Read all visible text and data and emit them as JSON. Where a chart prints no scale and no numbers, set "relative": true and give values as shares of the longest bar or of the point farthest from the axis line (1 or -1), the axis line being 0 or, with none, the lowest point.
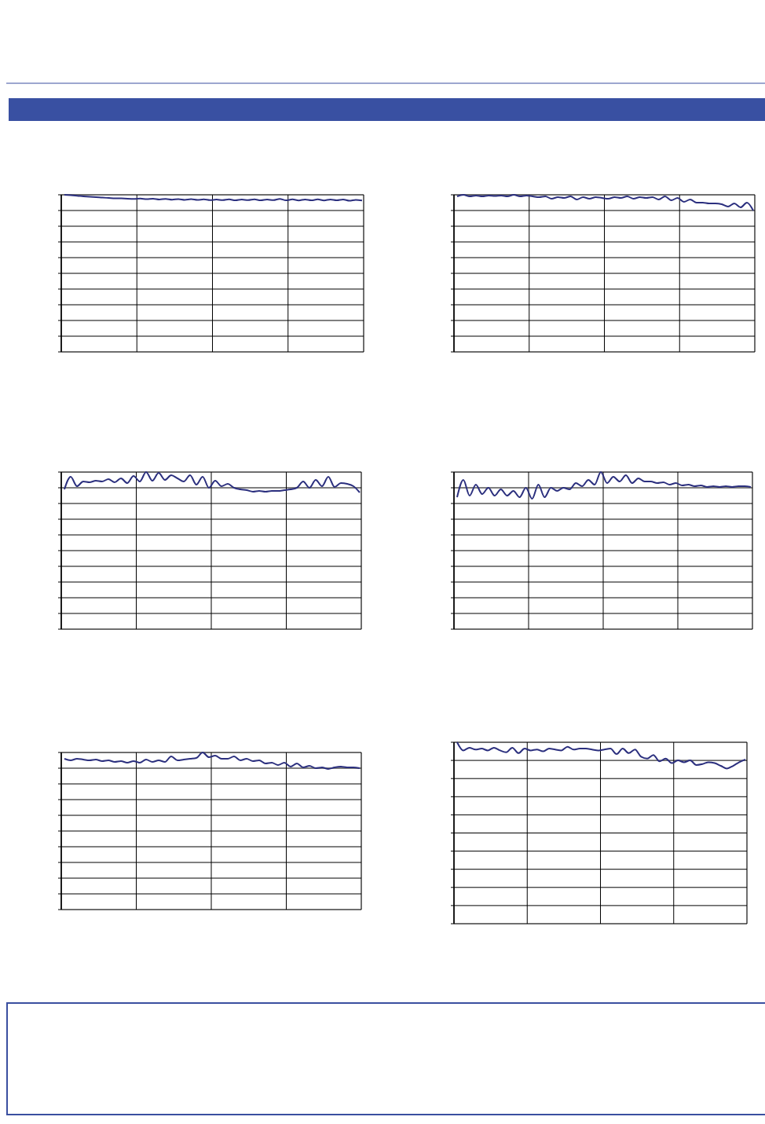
{
  "chart_data": [
    {
      "type": "line",
      "relative": true,
      "grid": true,
      "categories": [
        null,
        null,
        null,
        null,
        null,
        null,
        null,
        null,
        null,
        null,
        null,
        null,
        null,
        null,
        null,
        null,
        null,
        null,
        null,
        null,
        null,
        null,
        null,
        null,
        null,
        null,
        null,
        null,
        null,
        null,
        null,
        null,
        null,
        null,
        null,
        null,
        null,
        null,
        null,
        null,
        null,
        null,
        null,
        null,
        null,
        null,
        null,
        null
      ],
      "series": [
        {
          "color": "#2b2f7e",
          "values": [
            1,
            0.997,
            0.994,
            0.99,
            0.987,
            0.985,
            0.982,
            0.98,
            0.978,
            0.977,
            0.975,
            0.974,
            0.976,
            0.972,
            0.975,
            0.97,
            0.974,
            0.969,
            0.973,
            0.968,
            0.972,
            0.967,
            0.971,
            0.966,
            0.97,
            0.966,
            0.971,
            0.965,
            0.97,
            0.966,
            0.971,
            0.965,
            0.97,
            0.966,
            0.974,
            0.965,
            0.971,
            0.964,
            0.97,
            0.965,
            0.971,
            0.964,
            0.97,
            0.965,
            0.97,
            0.962,
            0.968,
            0.964
          ]
        }
      ]
    },
    {
      "type": "line",
      "relative": true,
      "grid": true,
      "categories": [
        null,
        null,
        null,
        null,
        null,
        null,
        null,
        null,
        null,
        null,
        null,
        null,
        null,
        null,
        null,
        null,
        null,
        null,
        null,
        null,
        null,
        null,
        null,
        null,
        null,
        null,
        null,
        null,
        null,
        null,
        null,
        null,
        null,
        null,
        null,
        null,
        null,
        null,
        null,
        null,
        null,
        null,
        null,
        null,
        null,
        null,
        null,
        null
      ],
      "series": [
        {
          "color": "#2b2f7e",
          "values": [
            0.99,
            1,
            0.99,
            0.995,
            0.99,
            0.995,
            0.993,
            0.995,
            0.99,
            1,
            0.99,
            0.995,
            0.99,
            0.985,
            0.99,
            0.975,
            0.985,
            0.98,
            0.99,
            0.97,
            0.985,
            0.975,
            0.985,
            0.98,
            0.975,
            0.985,
            0.98,
            0.99,
            0.975,
            0.985,
            0.98,
            0.985,
            0.97,
            0.99,
            0.965,
            0.98,
            0.955,
            0.97,
            0.95,
            0.95,
            0.945,
            0.945,
            0.94,
            0.925,
            0.945,
            0.92,
            0.95,
            0.9
          ]
        }
      ]
    },
    {
      "type": "line",
      "relative": true,
      "grid": true,
      "categories": [
        null,
        null,
        null,
        null,
        null,
        null,
        null,
        null,
        null,
        null,
        null,
        null,
        null,
        null,
        null,
        null,
        null,
        null,
        null,
        null,
        null,
        null,
        null,
        null,
        null,
        null,
        null,
        null,
        null,
        null,
        null,
        null,
        null,
        null,
        null,
        null,
        null,
        null,
        null,
        null,
        null,
        null,
        null,
        null,
        null,
        null,
        null,
        null
      ],
      "series": [
        {
          "color": "#2b2f7e",
          "values": [
            0.89,
            0.97,
            0.91,
            0.94,
            0.935,
            0.945,
            0.94,
            0.955,
            0.935,
            0.96,
            0.93,
            0.975,
            0.94,
            1,
            0.945,
            0.995,
            0.95,
            0.98,
            0.96,
            0.94,
            0.98,
            0.92,
            0.97,
            0.9,
            0.945,
            0.91,
            0.925,
            0.9,
            0.89,
            0.885,
            0.875,
            0.88,
            0.875,
            0.88,
            0.88,
            0.885,
            0.89,
            0.9,
            0.94,
            0.9,
            0.95,
            0.91,
            0.97,
            0.905,
            0.93,
            0.925,
            0.91,
            0.87
          ]
        }
      ]
    },
    {
      "type": "line",
      "relative": true,
      "grid": true,
      "categories": [
        null,
        null,
        null,
        null,
        null,
        null,
        null,
        null,
        null,
        null,
        null,
        null,
        null,
        null,
        null,
        null,
        null,
        null,
        null,
        null,
        null,
        null,
        null,
        null,
        null,
        null,
        null,
        null,
        null,
        null,
        null,
        null,
        null,
        null,
        null,
        null,
        null,
        null,
        null,
        null,
        null,
        null,
        null,
        null,
        null,
        null,
        null,
        null
      ],
      "series": [
        {
          "color": "#2b2f7e",
          "values": [
            0.84,
            0.95,
            0.85,
            0.92,
            0.86,
            0.9,
            0.85,
            0.89,
            0.85,
            0.88,
            0.84,
            0.9,
            0.83,
            0.92,
            0.84,
            0.9,
            0.88,
            0.9,
            0.89,
            0.93,
            0.91,
            0.95,
            0.92,
            1,
            0.93,
            0.97,
            0.94,
            0.98,
            0.93,
            0.96,
            0.94,
            0.94,
            0.93,
            0.935,
            0.92,
            0.93,
            0.915,
            0.92,
            0.91,
            0.915,
            0.905,
            0.91,
            0.905,
            0.91,
            0.905,
            0.91,
            0.91,
            0.905
          ]
        }
      ]
    },
    {
      "type": "line",
      "relative": true,
      "grid": true,
      "categories": [
        null,
        null,
        null,
        null,
        null,
        null,
        null,
        null,
        null,
        null,
        null,
        null,
        null,
        null,
        null,
        null,
        null,
        null,
        null,
        null,
        null,
        null,
        null,
        null,
        null,
        null,
        null,
        null,
        null,
        null,
        null,
        null,
        null,
        null,
        null,
        null,
        null,
        null,
        null,
        null,
        null,
        null,
        null,
        null,
        null,
        null,
        null,
        null
      ],
      "series": [
        {
          "color": "#2b2f7e",
          "values": [
            0.96,
            0.95,
            0.96,
            0.955,
            0.95,
            0.955,
            0.945,
            0.95,
            0.94,
            0.945,
            0.935,
            0.945,
            0.935,
            0.955,
            0.94,
            0.95,
            0.94,
            0.975,
            0.95,
            0.955,
            0.96,
            0.965,
            1,
            0.97,
            0.98,
            0.96,
            0.96,
            0.975,
            0.95,
            0.96,
            0.945,
            0.95,
            0.93,
            0.935,
            0.92,
            0.935,
            0.91,
            0.93,
            0.905,
            0.915,
            0.9,
            0.905,
            0.895,
            0.905,
            0.91,
            0.905,
            0.905,
            0.9
          ]
        }
      ]
    },
    {
      "type": "line",
      "relative": true,
      "grid": true,
      "categories": [
        null,
        null,
        null,
        null,
        null,
        null,
        null,
        null,
        null,
        null,
        null,
        null,
        null,
        null,
        null,
        null,
        null,
        null,
        null,
        null,
        null,
        null,
        null,
        null,
        null,
        null,
        null,
        null,
        null,
        null,
        null,
        null,
        null,
        null,
        null,
        null,
        null,
        null,
        null,
        null,
        null,
        null,
        null,
        null,
        null,
        null,
        null,
        null
      ],
      "series": [
        {
          "color": "#2b2f7e",
          "values": [
            1,
            0.955,
            0.97,
            0.96,
            0.965,
            0.955,
            0.97,
            0.955,
            0.945,
            0.97,
            0.94,
            0.965,
            0.955,
            0.96,
            0.95,
            0.965,
            0.96,
            0.955,
            0.975,
            0.96,
            0.965,
            0.965,
            0.96,
            0.955,
            0.96,
            0.965,
            0.935,
            0.965,
            0.94,
            0.96,
            0.92,
            0.91,
            0.93,
            0.895,
            0.91,
            0.885,
            0.9,
            0.89,
            0.9,
            0.875,
            0.88,
            0.89,
            0.885,
            0.87,
            0.855,
            0.87,
            0.89,
            0.905
          ]
        }
      ]
    }
  ]
}
